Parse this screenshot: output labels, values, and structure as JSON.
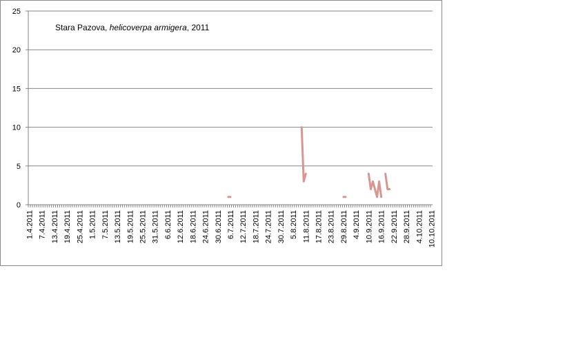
{
  "chart_data": {
    "type": "line",
    "title_parts": [
      "Stara Pazova,",
      "helicoverpa armigera",
      ", 2011"
    ],
    "categories": [
      "1.4.2011",
      null,
      null,
      null,
      null,
      null,
      "7.4.2011",
      null,
      null,
      null,
      null,
      null,
      "13.4.2011",
      null,
      null,
      null,
      null,
      null,
      "19.4.2011",
      null,
      null,
      null,
      null,
      null,
      "25.4.2011",
      null,
      null,
      null,
      null,
      null,
      "1.5.2011",
      null,
      null,
      null,
      null,
      null,
      "7.5.2011",
      null,
      null,
      null,
      null,
      null,
      "13.5.2011",
      null,
      null,
      null,
      null,
      null,
      "19.5.2011",
      null,
      null,
      null,
      null,
      null,
      "25.5.2011",
      null,
      null,
      null,
      null,
      null,
      "31.5.2011",
      null,
      null,
      null,
      null,
      null,
      "6.6.2011",
      null,
      null,
      null,
      null,
      null,
      "12.6.2011",
      null,
      null,
      null,
      null,
      null,
      "18.6.2011",
      null,
      null,
      null,
      null,
      null,
      "24.6.2011",
      null,
      null,
      null,
      null,
      null,
      "30.6.2011",
      null,
      null,
      null,
      null,
      null,
      "6.7.2011",
      null,
      null,
      null,
      null,
      null,
      "12.7.2011",
      null,
      null,
      null,
      null,
      null,
      "18.7.2011",
      null,
      null,
      null,
      null,
      null,
      "24.7.2011",
      null,
      null,
      null,
      null,
      null,
      "30.7.2011",
      null,
      null,
      null,
      null,
      null,
      "5.8.2011",
      null,
      null,
      null,
      null,
      null,
      "11.8.2011",
      null,
      null,
      null,
      null,
      null,
      "17.8.2011",
      null,
      null,
      null,
      null,
      null,
      "23.8.2011",
      null,
      null,
      null,
      null,
      null,
      "29.8.2011",
      null,
      null,
      null,
      null,
      null,
      "4.9.2011",
      null,
      null,
      null,
      null,
      null,
      "10.9.2011",
      null,
      null,
      null,
      null,
      null,
      "16.9.2011",
      null,
      null,
      null,
      null,
      null,
      "22.9.2011",
      null,
      null,
      null,
      null,
      null,
      "28.9.2011",
      null,
      null,
      null,
      null,
      null,
      "4.10.2011",
      null,
      null,
      null,
      null,
      null,
      "10.10.2011"
    ],
    "series": [
      {
        "color": "#d9958f",
        "values": [
          null,
          null,
          null,
          null,
          null,
          null,
          null,
          null,
          null,
          null,
          null,
          null,
          null,
          null,
          null,
          null,
          null,
          null,
          null,
          null,
          null,
          null,
          null,
          null,
          null,
          null,
          null,
          null,
          null,
          null,
          null,
          null,
          null,
          null,
          null,
          null,
          null,
          null,
          null,
          null,
          null,
          null,
          null,
          null,
          null,
          null,
          null,
          null,
          null,
          null,
          null,
          null,
          null,
          null,
          null,
          null,
          null,
          null,
          null,
          null,
          null,
          null,
          null,
          null,
          null,
          null,
          null,
          null,
          null,
          null,
          null,
          null,
          null,
          null,
          null,
          null,
          null,
          null,
          null,
          null,
          null,
          null,
          null,
          null,
          null,
          null,
          null,
          null,
          null,
          null,
          null,
          null,
          null,
          null,
          null,
          1,
          1,
          null,
          null,
          null,
          null,
          null,
          null,
          null,
          null,
          null,
          null,
          null,
          null,
          null,
          null,
          null,
          null,
          null,
          null,
          null,
          null,
          null,
          null,
          null,
          null,
          null,
          null,
          null,
          null,
          null,
          null,
          null,
          null,
          null,
          10,
          3,
          4,
          null,
          null,
          null,
          null,
          null,
          null,
          null,
          null,
          null,
          null,
          null,
          null,
          null,
          null,
          null,
          null,
          null,
          1,
          1,
          null,
          null,
          null,
          null,
          null,
          null,
          null,
          null,
          null,
          null,
          4,
          2,
          3,
          2,
          1,
          3,
          1,
          null,
          4,
          2,
          2,
          null,
          null,
          null,
          null,
          null,
          null,
          null,
          null,
          null,
          null,
          null,
          null,
          null,
          null,
          null,
          null,
          null,
          null,
          null,
          null
        ]
      }
    ],
    "ylim": [
      0,
      25
    ],
    "yticks": [
      0,
      5,
      10,
      15,
      20,
      25
    ],
    "grid": true
  }
}
